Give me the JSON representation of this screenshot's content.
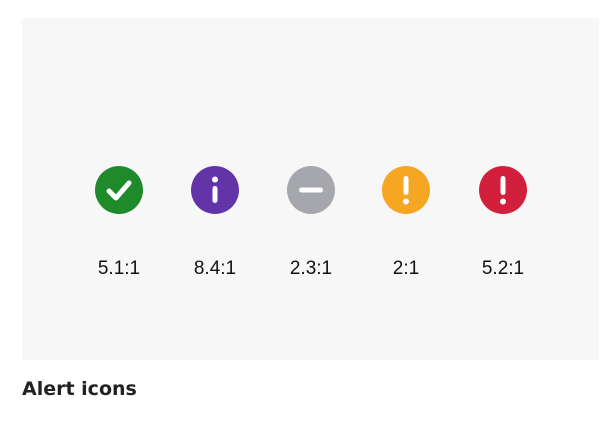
{
  "caption": "Alert icons",
  "icons": [
    {
      "name": "success-icon",
      "symbol": "check",
      "color": "#1e8a2a",
      "ratio": "5.1:1"
    },
    {
      "name": "info-icon",
      "symbol": "info",
      "color": "#6334a8",
      "ratio": "8.4:1"
    },
    {
      "name": "neutral-icon",
      "symbol": "minus",
      "color": "#a6a7ad",
      "ratio": "2.3:1"
    },
    {
      "name": "warning-icon",
      "symbol": "exclamation",
      "color": "#f5a623",
      "ratio": "2:1"
    },
    {
      "name": "error-icon",
      "symbol": "exclamation",
      "color": "#d21f3c",
      "ratio": "5.2:1"
    }
  ]
}
